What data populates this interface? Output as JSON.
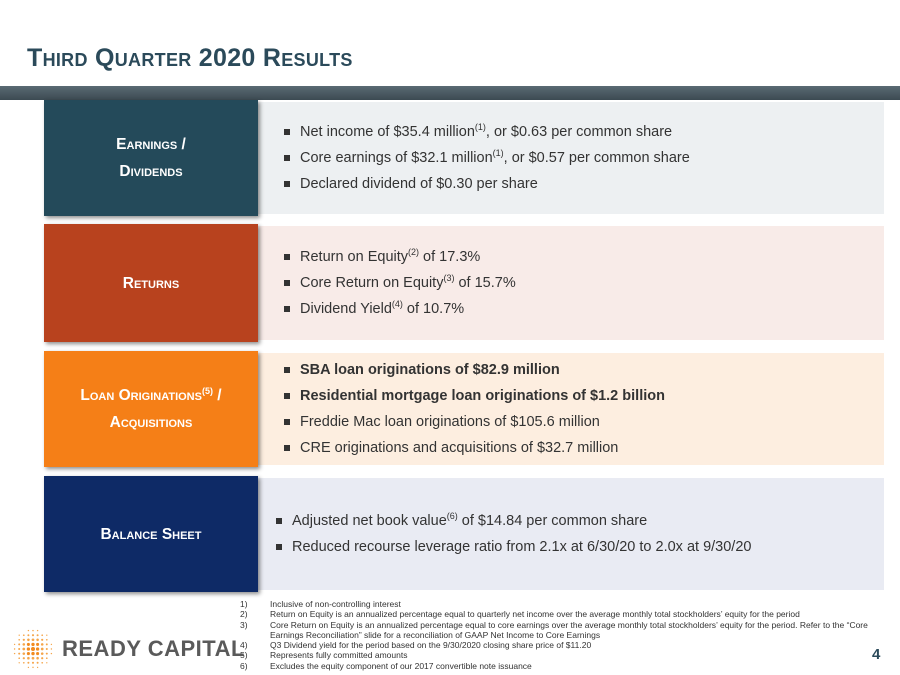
{
  "title": "Third Quarter 2020 Results",
  "colors": {
    "title": "#2b4a5a",
    "earnings_label": "#244a5a",
    "earnings_bg": "#edf0f2",
    "returns_label": "#b8421e",
    "returns_bg": "#f8ebe8",
    "loans_label": "#f57f17",
    "loans_bg": "#fdeee0",
    "balance_label": "#0e2a66",
    "balance_bg": "#e9ebf3"
  },
  "sections": [
    {
      "label_lines": [
        "Earnings /",
        "Dividends"
      ],
      "bullets": [
        {
          "pre": "Net income of $35.4 million",
          "sup": "(1)",
          "post": ", or $0.63 per common share"
        },
        {
          "pre": "Core earnings of $32.1 million",
          "sup": "(1)",
          "post": ", or $0.57 per common share"
        },
        {
          "pre": "Declared dividend of $0.30 per share",
          "sup": "",
          "post": ""
        }
      ]
    },
    {
      "label_lines": [
        "Returns"
      ],
      "bullets": [
        {
          "pre": "Return on Equity",
          "sup": "(2)",
          "post": " of 17.3%"
        },
        {
          "pre": "Core Return on Equity",
          "sup": "(3)",
          "post": " of 15.7%"
        },
        {
          "pre": "Dividend Yield",
          "sup": "(4)",
          "post": " of 10.7%"
        }
      ]
    },
    {
      "label_lines_first": "Loan Originations",
      "label_sup": "(5)",
      "label_lines_first_post": " /",
      "label_line_second": "Acquisitions",
      "bullets": [
        {
          "pre": "SBA loan originations of $82.9 million",
          "sup": "",
          "post": ""
        },
        {
          "pre": "Residential mortgage loan originations of $1.2 billion",
          "sup": "",
          "post": ""
        },
        {
          "pre": "Freddie Mac loan originations of $105.6 million",
          "sup": "",
          "post": ""
        },
        {
          "pre": "CRE originations and acquisitions of $32.7 million",
          "sup": "",
          "post": ""
        }
      ]
    },
    {
      "label_lines": [
        "Balance Sheet"
      ],
      "bullets": [
        {
          "pre": "Adjusted net book value",
          "sup": "(6)",
          "post": " of $14.84 per common share"
        },
        {
          "pre": "Reduced recourse leverage ratio from 2.1x at 6/30/20 to 2.0x at 9/30/20",
          "sup": "",
          "post": ""
        }
      ]
    }
  ],
  "footnotes": [
    {
      "num": "1)",
      "text": "Inclusive of non-controlling interest"
    },
    {
      "num": "2)",
      "text": "Return on Equity is an annualized percentage equal to quarterly net income over the average monthly total stockholders’ equity for the period"
    },
    {
      "num": "3)",
      "text": "Core Return on Equity is an annualized percentage equal to core earnings over the average monthly total stockholders’ equity for the period. Refer to the “Core Earnings Reconciliation” slide for a reconciliation of GAAP Net Income to Core Earnings"
    },
    {
      "num": "4)",
      "text": "Q3 Dividend yield for the period based on the 9/30/2020 closing share price of $11.20"
    },
    {
      "num": "5)",
      "text": "Represents fully committed amounts"
    },
    {
      "num": "6)",
      "text": "Excludes the equity component of our 2017 convertible note issuance"
    }
  ],
  "logo": {
    "text": "READY CAPITAL",
    "icon": "starburst-dots-logo-icon"
  },
  "page_number": "4"
}
